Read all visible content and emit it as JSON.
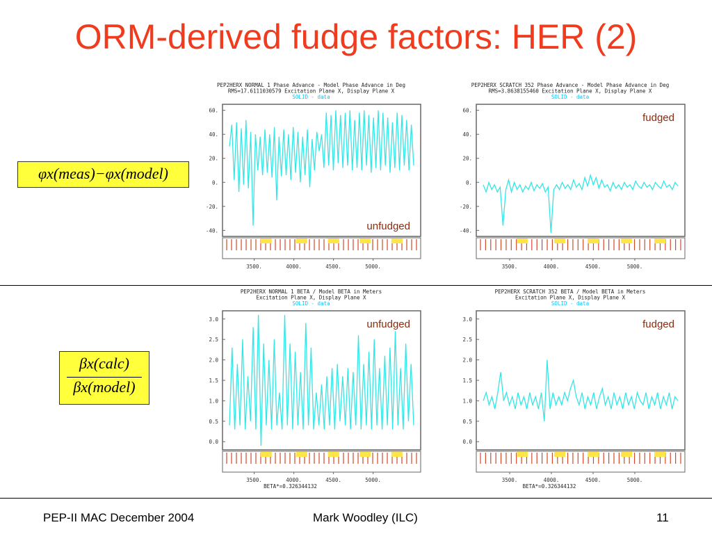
{
  "slide": {
    "title": "ORM-derived fudge factors: HER (2)",
    "title_color": "#f03c1e",
    "eq_phase": "φx(meas)−φx(model)",
    "eq_beta_num": "βx(calc)",
    "eq_beta_den": "βx(model)",
    "footer_left": "PEP-II MAC December 2004",
    "footer_center": "Mark Woodley (ILC)",
    "footer_right": "11"
  },
  "chart_data": [
    {
      "type": "line",
      "header": [
        "PEP2HERX NORMAL  1 Phase Advance - Model Phase Advance in Deg",
        "RMS=17.6111030579 Excitation Plane X, Display Plane X"
      ],
      "legend": "SOLID  - data",
      "annotation": "unfudged",
      "ylim": [
        -45,
        65
      ],
      "yticks": [
        "60.",
        "40.",
        "20.",
        "0.",
        "-20.",
        "-40."
      ],
      "xlim": [
        3100,
        5600
      ],
      "xticks": [
        "3500.",
        "4000.",
        "4500.",
        "5000."
      ],
      "footer_text": "",
      "series": [
        {
          "values": [
            30,
            48,
            2,
            50,
            -8,
            45,
            -2,
            52,
            -5,
            42,
            -36,
            40,
            10,
            38,
            6,
            44,
            8,
            40,
            4,
            46,
            -15,
            38,
            5,
            44,
            6,
            40,
            2,
            46,
            8,
            42,
            0,
            38,
            6,
            44,
            -4,
            36,
            10,
            42,
            26,
            40,
            12,
            58,
            14,
            56,
            10,
            60,
            16,
            56,
            12,
            58,
            14,
            60,
            10,
            52,
            12,
            58,
            10,
            60,
            14,
            56,
            8,
            54,
            12,
            60,
            10,
            58,
            14,
            54,
            8,
            50,
            12,
            58,
            10,
            56,
            14,
            52,
            10,
            48,
            14
          ]
        }
      ]
    },
    {
      "type": "line",
      "header": [
        "PEP2HERX SCRATCH 352 Phase Advance - Model Phase Advance in Deg",
        "RMS=3.8638155460 Excitation Plane X, Display Plane X"
      ],
      "legend": "SOLID  - data",
      "annotation": "fudged",
      "ylim": [
        -45,
        65
      ],
      "yticks": [
        "60.",
        "40.",
        "20.",
        "0.",
        "-20.",
        "-40."
      ],
      "xlim": [
        3100,
        5600
      ],
      "xticks": [
        "3500.",
        "4000.",
        "4500.",
        "5000."
      ],
      "footer_text": "",
      "series": [
        {
          "values": [
            -2,
            -8,
            0,
            -6,
            -2,
            -8,
            -4,
            -36,
            -6,
            2,
            -8,
            0,
            -6,
            -2,
            -8,
            -3,
            -6,
            0,
            -7,
            -2,
            -5,
            -1,
            -8,
            -4,
            -42,
            -6,
            -2,
            -6,
            0,
            -5,
            -2,
            -6,
            2,
            -4,
            -1,
            -6,
            4,
            -3,
            6,
            -2,
            4,
            -5,
            2,
            -4,
            -2,
            -7,
            0,
            -5,
            -2,
            -6,
            0,
            -4,
            -2,
            -6,
            1,
            -3,
            -5,
            0,
            -4,
            -2,
            -6,
            0,
            -3,
            -5,
            1,
            -4,
            -2,
            -6,
            0,
            -3
          ]
        }
      ]
    },
    {
      "type": "line",
      "header": [
        "PEP2HERX NORMAL  1 BETA / Model BETA in Meters",
        "Excitation Plane X, Display Plane X"
      ],
      "legend": "SOLID  - data",
      "annotation": "unfudged",
      "ylim": [
        -0.2,
        3.2
      ],
      "yticks": [
        "3.0",
        "2.5",
        "2.0",
        "1.5",
        "1.0",
        "0.5",
        "0.0"
      ],
      "xlim": [
        3100,
        5600
      ],
      "xticks": [
        "3500.",
        "4000.",
        "4500.",
        "5000."
      ],
      "footer_text": "BETA*=0.326344132",
      "series": [
        {
          "values": [
            0.4,
            2.3,
            0.3,
            1.9,
            0.4,
            2.5,
            0.3,
            1.6,
            0.5,
            2.8,
            0.3,
            3.1,
            -0.1,
            2.4,
            0.4,
            2.0,
            0.3,
            2.5,
            0.4,
            1.2,
            0.3,
            3.1,
            0.4,
            2.4,
            0.3,
            2.2,
            0.4,
            1.7,
            0.3,
            2.9,
            0.4,
            2.3,
            0.3,
            1.2,
            0.4,
            1.4,
            0.3,
            1.6,
            0.4,
            1.8,
            0.3,
            1.9,
            0.5,
            1.6,
            0.4,
            1.8,
            0.3,
            1.7,
            0.4,
            2.6,
            0.3,
            1.9,
            0.4,
            2.2,
            0.3,
            2.5,
            0.4,
            1.8,
            0.3,
            2.1,
            0.4,
            2.3,
            0.3,
            2.7,
            0.4,
            1.8,
            0.3,
            2.4,
            0.5,
            1.9,
            0.4
          ]
        }
      ]
    },
    {
      "type": "line",
      "header": [
        "PEP2HERX SCRATCH 352 BETA / Model BETA in Meters",
        "Excitation Plane X, Display Plane X"
      ],
      "legend": "SOLID  - data",
      "annotation": "fudged",
      "ylim": [
        -0.2,
        3.2
      ],
      "yticks": [
        "3.0",
        "2.5",
        "2.0",
        "1.5",
        "1.0",
        "0.5",
        "0.0"
      ],
      "xlim": [
        3100,
        5600
      ],
      "xticks": [
        "3500.",
        "4000.",
        "4500.",
        "5000."
      ],
      "footer_text": "BETA*=0.326344132",
      "series": [
        {
          "values": [
            1.0,
            1.2,
            0.9,
            1.1,
            0.8,
            1.2,
            1.7,
            1.0,
            1.2,
            0.9,
            1.1,
            0.8,
            1.2,
            0.9,
            1.1,
            0.8,
            1.2,
            0.9,
            1.1,
            0.8,
            1.2,
            0.5,
            2.0,
            0.8,
            1.2,
            0.9,
            1.1,
            0.9,
            1.2,
            1.0,
            1.3,
            1.5,
            1.1,
            0.9,
            1.2,
            0.8,
            1.1,
            0.9,
            1.2,
            0.8,
            1.1,
            1.3,
            0.9,
            1.1,
            0.8,
            1.2,
            0.9,
            1.1,
            0.8,
            1.2,
            0.9,
            1.1,
            0.8,
            1.2,
            1.0,
            0.9,
            1.2,
            0.8,
            1.1,
            0.9,
            1.2,
            0.8,
            1.1,
            0.9,
            1.2,
            0.8,
            1.1,
            1.0
          ]
        }
      ]
    }
  ]
}
